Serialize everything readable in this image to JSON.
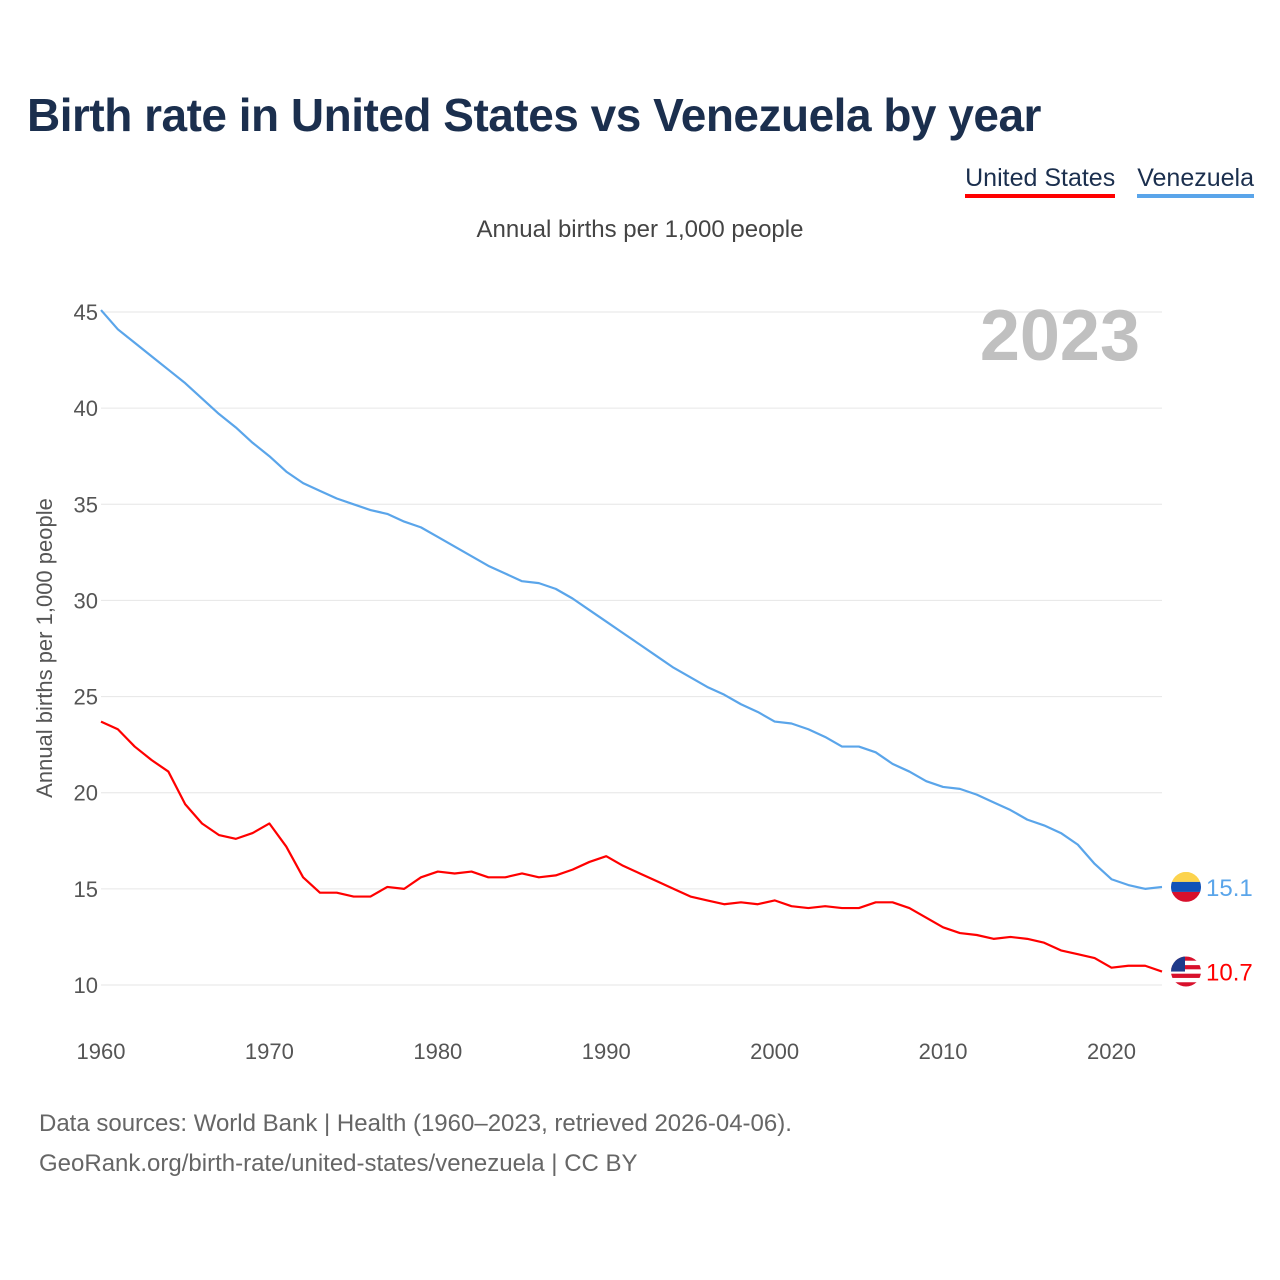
{
  "chart_data": {
    "type": "line",
    "title": "Birth rate in United States vs Venezuela by year",
    "subtitle": "Annual births per 1,000 people",
    "xlabel": "",
    "ylabel": "Annual births per 1,000 people",
    "xlim": [
      1960,
      2023
    ],
    "ylim": [
      10,
      45
    ],
    "x_ticks": [
      "1960",
      "1970",
      "1980",
      "1990",
      "2000",
      "2010",
      "2020"
    ],
    "y_ticks": [
      "10",
      "15",
      "20",
      "25",
      "30",
      "35",
      "40",
      "45"
    ],
    "year_label": "2023",
    "grid": true,
    "legend_position": "top-right",
    "series": [
      {
        "name": "United States",
        "color": "#ff0000",
        "end_label": "10.7",
        "values": [
          23.7,
          23.3,
          22.4,
          21.7,
          21.1,
          19.4,
          18.4,
          17.8,
          17.6,
          17.9,
          18.4,
          17.2,
          15.6,
          14.8,
          14.8,
          14.6,
          14.6,
          15.1,
          15.0,
          15.6,
          15.9,
          15.8,
          15.9,
          15.6,
          15.6,
          15.8,
          15.6,
          15.7,
          16.0,
          16.4,
          16.7,
          16.2,
          15.8,
          15.4,
          15.0,
          14.6,
          14.4,
          14.2,
          14.3,
          14.2,
          14.4,
          14.1,
          14.0,
          14.1,
          14.0,
          14.0,
          14.3,
          14.3,
          14.0,
          13.5,
          13.0,
          12.7,
          12.6,
          12.4,
          12.5,
          12.4,
          12.2,
          11.8,
          11.6,
          11.4,
          10.9,
          11.0,
          11.0,
          10.7
        ]
      },
      {
        "name": "Venezuela",
        "color": "#5aa5ea",
        "end_label": "15.1",
        "values": [
          45.1,
          44.1,
          43.4,
          42.7,
          42.0,
          41.3,
          40.5,
          39.7,
          39.0,
          38.2,
          37.5,
          36.7,
          36.1,
          35.7,
          35.3,
          35.0,
          34.7,
          34.5,
          34.1,
          33.8,
          33.3,
          32.8,
          32.3,
          31.8,
          31.4,
          31.0,
          30.9,
          30.6,
          30.1,
          29.5,
          28.9,
          28.3,
          27.7,
          27.1,
          26.5,
          26.0,
          25.5,
          25.1,
          24.6,
          24.2,
          23.7,
          23.6,
          23.3,
          22.9,
          22.4,
          22.4,
          22.1,
          21.5,
          21.1,
          20.6,
          20.3,
          20.2,
          19.9,
          19.5,
          19.1,
          18.6,
          18.3,
          17.9,
          17.3,
          16.3,
          15.5,
          15.2,
          15.0,
          15.1
        ]
      }
    ]
  },
  "footer": {
    "line1": "Data sources: World Bank | Health (1960–2023, retrieved 2026-04-06).",
    "line2": "GeoRank.org/birth-rate/united-states/venezuela | CC BY"
  }
}
